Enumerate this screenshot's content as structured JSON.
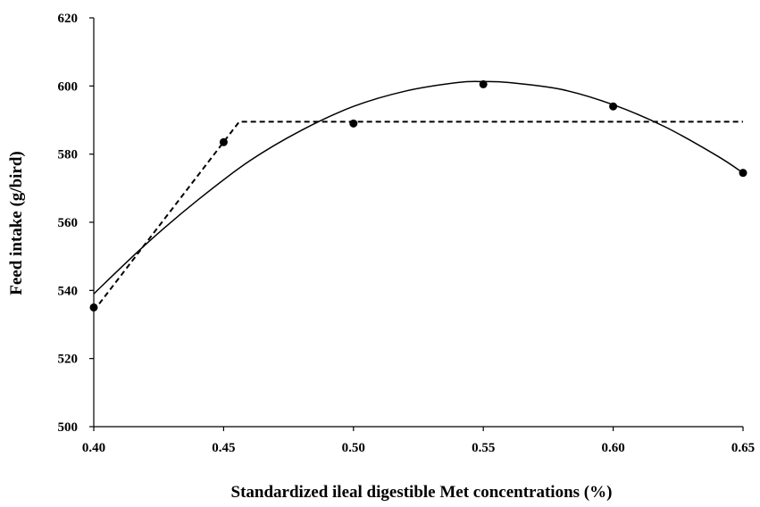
{
  "chart_data": {
    "type": "scatter",
    "title": "",
    "xlabel": "Standardized ileal digestible Met concentrations (%)",
    "ylabel": "Feed intake (g/bird)",
    "xlim": [
      0.4,
      0.65
    ],
    "ylim": [
      500,
      620
    ],
    "x_ticks": [
      "0.40",
      "0.45",
      "0.50",
      "0.55",
      "0.60",
      "0.65"
    ],
    "y_ticks": [
      "500",
      "520",
      "540",
      "560",
      "580",
      "600",
      "620"
    ],
    "grid": false,
    "legend": "none",
    "series": [
      {
        "type": "scatter",
        "x": [
          0.4,
          0.45,
          0.5,
          0.55,
          0.6,
          0.65
        ],
        "y": [
          535,
          583.5,
          589,
          600.5,
          594,
          574.5
        ],
        "color": "#000000"
      },
      {
        "type": "line",
        "style": "solid",
        "x": [
          0.4,
          0.42,
          0.44,
          0.46,
          0.48,
          0.5,
          0.52,
          0.54,
          0.55,
          0.56,
          0.58,
          0.6,
          0.62,
          0.64,
          0.65
        ],
        "y": [
          539,
          553.5,
          566.5,
          578,
          587,
          594,
          598.5,
          601,
          601.3,
          601,
          599,
          594.5,
          588,
          579.5,
          574.5
        ],
        "color": "#000000"
      },
      {
        "type": "line",
        "style": "dashed",
        "x": [
          0.4,
          0.456,
          0.65
        ],
        "y": [
          534,
          589.5,
          589.5
        ],
        "color": "#000000"
      }
    ]
  }
}
